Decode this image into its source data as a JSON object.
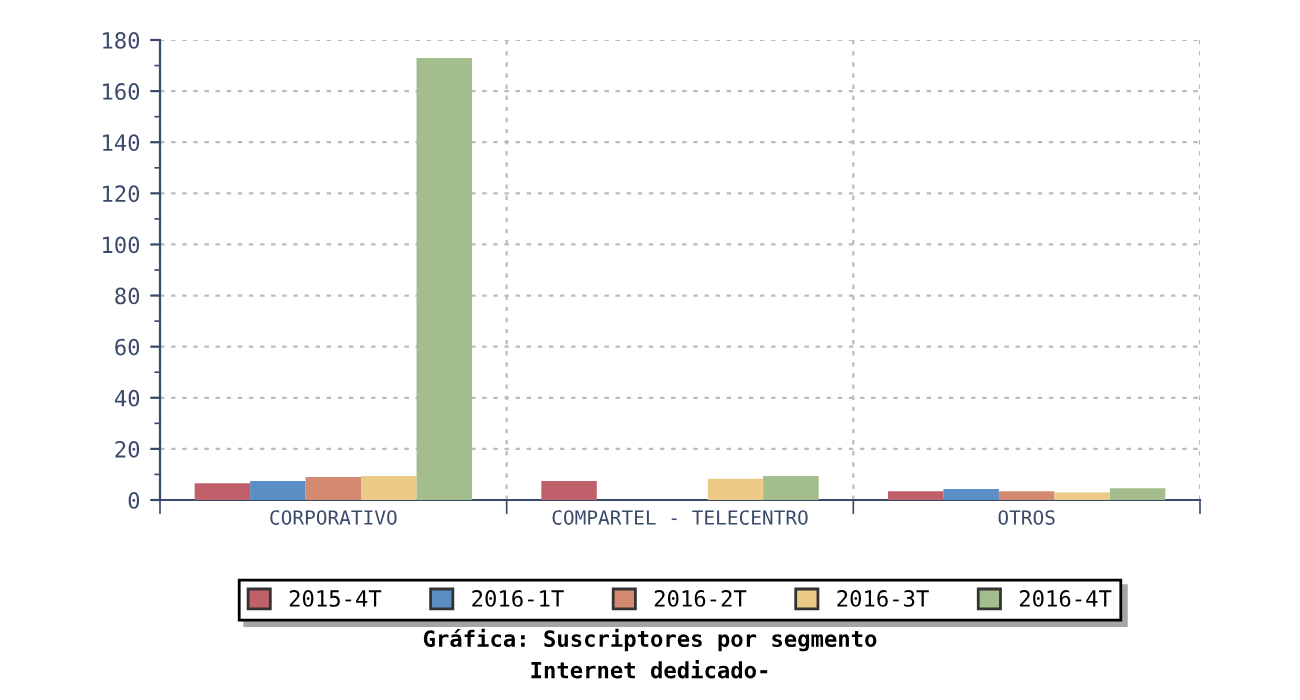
{
  "chart_data": {
    "type": "bar",
    "title": "Gráfica: Suscriptores por segmento",
    "subtitle": "Internet dedicado-",
    "categories": [
      "CORPORATIVO",
      "COMPARTEL - TELECENTRO",
      "OTROS"
    ],
    "series": [
      {
        "name": "2015-4T",
        "color": "#c0606a",
        "values": [
          6.6,
          7.4,
          3.4
        ]
      },
      {
        "name": "2016-1T",
        "color": "#5b8ec4",
        "values": [
          7.4,
          null,
          4.3
        ]
      },
      {
        "name": "2016-2T",
        "color": "#d48a70",
        "values": [
          9,
          null,
          3.4
        ]
      },
      {
        "name": "2016-3T",
        "color": "#ecca88",
        "values": [
          9.4,
          8.3,
          2.9
        ]
      },
      {
        "name": "2016-4T",
        "color": "#a4bd8c",
        "values": [
          173,
          9.4,
          4.6
        ]
      }
    ],
    "ylim": [
      0,
      180
    ],
    "yticks": [
      0,
      20,
      40,
      60,
      80,
      100,
      120,
      140,
      160,
      180
    ],
    "grid": true,
    "legend": "bottom"
  }
}
